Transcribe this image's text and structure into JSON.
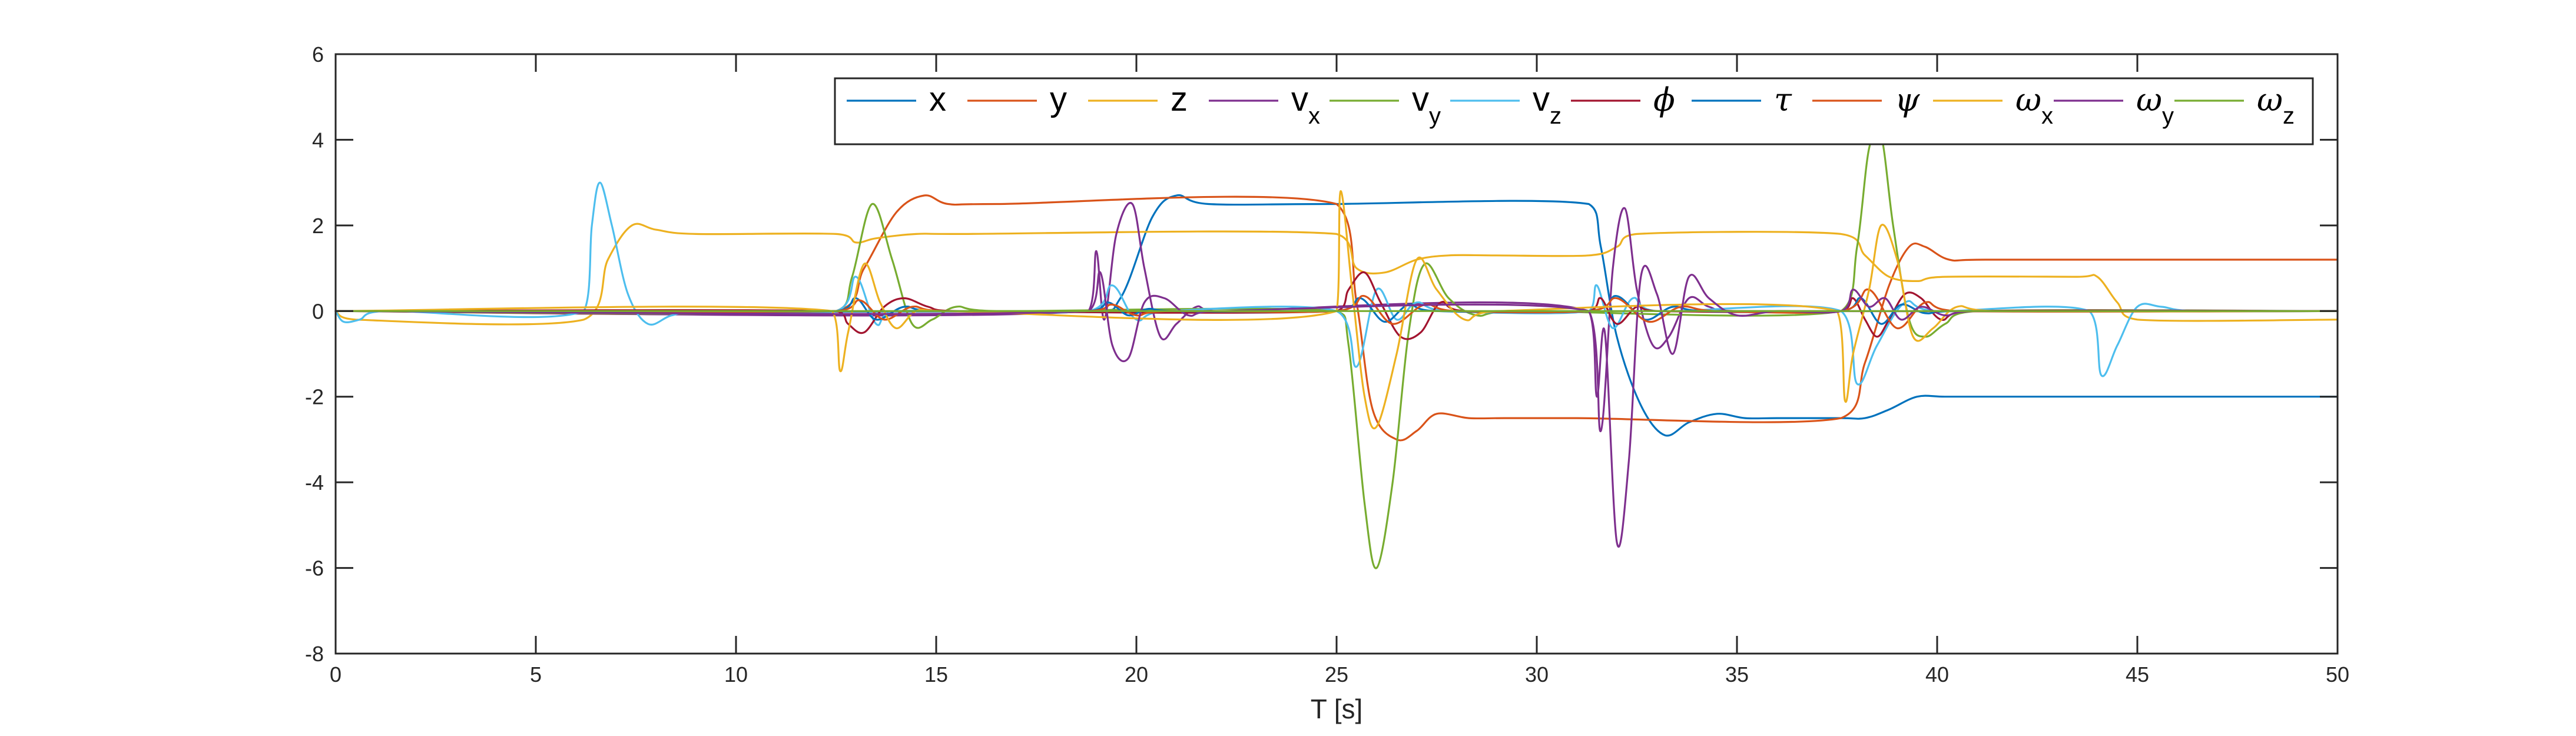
{
  "chart_data": {
    "type": "line",
    "title": "",
    "xlabel": "T [s]",
    "ylabel": "",
    "xlim": [
      0,
      50
    ],
    "ylim": [
      -8,
      6
    ],
    "xticks": [
      0,
      5,
      10,
      15,
      20,
      25,
      30,
      35,
      40,
      45,
      50
    ],
    "yticks": [
      -8,
      -6,
      -4,
      -2,
      0,
      2,
      4,
      6
    ],
    "xtick_labels": [
      "0",
      "5",
      "10",
      "15",
      "20",
      "25",
      "30",
      "35",
      "40",
      "45",
      "50"
    ],
    "ytick_labels": [
      "-8",
      "-6",
      "-4",
      "-2",
      "0",
      "2",
      "4",
      "6"
    ],
    "grid": false,
    "legend_position": "top-right",
    "series": [
      {
        "name": "x",
        "base": "x",
        "sub": "",
        "greek": false,
        "color": "#0072BD",
        "x": [
          0,
          18.8,
          19.6,
          20.4,
          21.0,
          21.8,
          24.8,
          31.3,
          31.6,
          32.0,
          32.6,
          33.2,
          33.8,
          34.5,
          35.2,
          36.0,
          37.6,
          38.2,
          38.8,
          39.5,
          40.2,
          41.5,
          50
        ],
        "y": [
          0,
          0,
          0.3,
          2.2,
          2.7,
          2.5,
          2.5,
          2.5,
          1.5,
          -0.6,
          -2.2,
          -2.9,
          -2.6,
          -2.4,
          -2.5,
          -2.5,
          -2.5,
          -2.5,
          -2.3,
          -2.0,
          -2.0,
          -2.0,
          -2.0
        ]
      },
      {
        "name": "y",
        "base": "y",
        "sub": "",
        "greek": false,
        "color": "#D95319",
        "x": [
          0,
          12.5,
          13.2,
          14.0,
          14.7,
          15.3,
          16.5,
          25.0,
          25.5,
          25.9,
          26.5,
          27.0,
          27.5,
          28.3,
          29.2,
          31.0,
          37.6,
          38.2,
          38.8,
          39.3,
          39.7,
          40.3,
          41.2,
          50
        ],
        "y": [
          0,
          0,
          1.0,
          2.3,
          2.7,
          2.5,
          2.5,
          2.5,
          0.2,
          -2.3,
          -3.0,
          -2.8,
          -2.4,
          -2.5,
          -2.5,
          -2.5,
          -2.5,
          -1.2,
          0.6,
          1.5,
          1.5,
          1.2,
          1.2,
          1.2
        ]
      },
      {
        "name": "z",
        "base": "z",
        "sub": "",
        "greek": false,
        "color": "#EDB120",
        "x": [
          0,
          0.5,
          6.2,
          6.8,
          7.4,
          8.0,
          9.0,
          12.5,
          13.0,
          13.5,
          14.5,
          15.5,
          25.0,
          25.5,
          26.2,
          27.0,
          27.8,
          29.0,
          31.3,
          32.0,
          32.5,
          37.6,
          38.2,
          38.8,
          39.5,
          40.2,
          43.5,
          44.0,
          44.5,
          45.0,
          50
        ],
        "y": [
          0,
          -0.2,
          -0.2,
          1.2,
          2.0,
          1.9,
          1.8,
          1.8,
          1.6,
          1.7,
          1.8,
          1.8,
          1.8,
          1.0,
          0.9,
          1.2,
          1.3,
          1.3,
          1.3,
          1.5,
          1.8,
          1.8,
          1.3,
          0.8,
          0.7,
          0.8,
          0.8,
          0.8,
          0.2,
          -0.2,
          -0.2
        ]
      },
      {
        "name": "v_x",
        "base": "v",
        "sub": "x",
        "greek": false,
        "color": "#7E2F8E",
        "x": [
          0,
          18.8,
          19.0,
          19.2,
          19.5,
          19.9,
          20.2,
          20.6,
          21.0,
          21.5,
          22.0,
          31.3,
          31.6,
          31.9,
          32.2,
          32.5,
          32.9,
          33.3,
          33.8,
          34.3,
          35.0,
          50
        ],
        "y": [
          0,
          0,
          1.4,
          -0.2,
          1.8,
          2.5,
          1.0,
          -0.6,
          -0.3,
          0.1,
          0,
          0,
          -2.8,
          1.0,
          2.4,
          0.5,
          -0.8,
          -0.6,
          0.3,
          0.1,
          0,
          0
        ]
      },
      {
        "name": "v_y",
        "base": "v",
        "sub": "y",
        "greek": false,
        "color": "#77AC30",
        "x": [
          0,
          12.5,
          12.9,
          13.4,
          13.9,
          14.4,
          14.9,
          15.5,
          16.5,
          25.0,
          25.3,
          25.7,
          26.0,
          26.4,
          26.8,
          27.2,
          27.8,
          28.5,
          29.5,
          37.6,
          38.0,
          38.3,
          38.6,
          38.9,
          39.3,
          39.7,
          40.2,
          41.0,
          50
        ],
        "y": [
          0,
          0,
          0.8,
          2.5,
          1.2,
          -0.3,
          -0.2,
          0.1,
          0,
          0,
          -0.8,
          -4.5,
          -6.0,
          -4.0,
          -0.5,
          1.1,
          0.3,
          -0.1,
          0,
          0,
          1.5,
          3.8,
          4.1,
          2.0,
          -0.2,
          -0.6,
          -0.3,
          0,
          0
        ]
      },
      {
        "name": "v_z",
        "base": "v",
        "sub": "z",
        "greek": false,
        "color": "#4DBEEE",
        "x": [
          0,
          0.2,
          0.6,
          1.2,
          6.2,
          6.4,
          6.6,
          6.9,
          7.3,
          7.8,
          8.4,
          9.2,
          12.5,
          13.0,
          13.5,
          14.0,
          18.8,
          19.4,
          20.0,
          20.8,
          25.0,
          25.5,
          26.0,
          26.5,
          27.0,
          27.8,
          31.3,
          31.5,
          31.9,
          32.4,
          33.0,
          37.6,
          38.0,
          38.5,
          39.2,
          40.0,
          43.8,
          44.1,
          44.5,
          45.0,
          45.6,
          46.5,
          50
        ],
        "y": [
          0,
          -0.25,
          -0.2,
          0,
          0,
          2.0,
          3.0,
          2.0,
          0.4,
          -0.3,
          -0.1,
          0,
          0,
          0.8,
          -0.3,
          0,
          0,
          0.6,
          -0.2,
          0,
          0,
          -1.3,
          0.5,
          -0.2,
          0.2,
          0,
          0,
          0.6,
          -0.4,
          0.3,
          0,
          0,
          -1.7,
          -0.8,
          0.2,
          0,
          0,
          -1.5,
          -0.8,
          0.1,
          0.1,
          0,
          0
        ]
      },
      {
        "name": "phi",
        "base": "ϕ",
        "sub": "",
        "greek": true,
        "color": "#A2142F",
        "x": [
          0,
          12.5,
          12.8,
          13.2,
          13.7,
          14.2,
          14.8,
          15.5,
          25.0,
          25.3,
          25.7,
          26.1,
          26.6,
          27.1,
          27.6,
          28.2,
          31.3,
          31.6,
          32.0,
          32.5,
          33.0,
          37.6,
          37.9,
          38.2,
          38.5,
          38.8,
          39.2,
          39.6,
          40.1,
          40.8,
          50
        ],
        "y": [
          0,
          0,
          -0.3,
          -0.5,
          0.1,
          0.3,
          0.1,
          0,
          0,
          0.5,
          0.9,
          0.2,
          -0.6,
          -0.5,
          0.2,
          0,
          0,
          0.3,
          -0.3,
          0.1,
          0,
          0,
          0.3,
          -0.2,
          -0.6,
          -0.2,
          0.4,
          0.3,
          -0.2,
          0,
          0
        ]
      },
      {
        "name": "tau",
        "base": "τ",
        "sub": "",
        "greek": true,
        "color": "#0072BD",
        "x": [
          0,
          12.5,
          13.0,
          13.5,
          14.2,
          15.0,
          18.8,
          19.3,
          19.8,
          20.3,
          21.0,
          25.0,
          25.6,
          26.2,
          26.8,
          27.5,
          31.3,
          32.0,
          32.7,
          33.4,
          34.2,
          37.6,
          38.1,
          38.6,
          39.1,
          39.7,
          40.5,
          50
        ],
        "y": [
          0,
          0,
          0.3,
          -0.2,
          0.1,
          0,
          0,
          0.2,
          -0.1,
          0.05,
          0,
          0,
          0.3,
          -0.25,
          0.15,
          0,
          0,
          0.35,
          -0.2,
          0.1,
          0,
          0,
          0.3,
          -0.3,
          0.15,
          -0.05,
          0,
          0
        ]
      },
      {
        "name": "psi",
        "base": "ψ",
        "sub": "",
        "greek": true,
        "color": "#D95319",
        "x": [
          0,
          12.5,
          13.1,
          13.7,
          14.4,
          15.2,
          18.8,
          19.4,
          20.0,
          20.8,
          25.0,
          25.7,
          26.4,
          27.2,
          28.0,
          31.3,
          32.0,
          32.8,
          33.6,
          34.5,
          37.6,
          38.3,
          39.0,
          39.7,
          40.5,
          50
        ],
        "y": [
          0,
          0,
          0.25,
          -0.2,
          0.1,
          0,
          0,
          0.15,
          -0.1,
          0,
          0,
          0.35,
          -0.3,
          0.15,
          0,
          0,
          0.3,
          -0.25,
          0.1,
          0,
          0,
          0.5,
          -0.4,
          0.2,
          0,
          0
        ]
      },
      {
        "name": "omega_x",
        "base": "ω",
        "sub": "x",
        "greek": true,
        "color": "#EDB120",
        "x": [
          0,
          12.4,
          12.6,
          12.8,
          13.2,
          13.6,
          14.0,
          14.5,
          15.2,
          25.0,
          25.1,
          25.4,
          25.7,
          26.0,
          26.5,
          27.0,
          27.5,
          28.2,
          29.0,
          37.5,
          37.7,
          37.9,
          38.3,
          38.6,
          39.0,
          39.4,
          39.9,
          40.5,
          41.5,
          50
        ],
        "y": [
          0,
          0,
          -1.4,
          -0.5,
          1.1,
          0.2,
          -0.4,
          0,
          0,
          0,
          2.8,
          0.4,
          -2.0,
          -2.7,
          -1.0,
          1.2,
          0.5,
          -0.2,
          0,
          0,
          -2.1,
          -1.0,
          0.5,
          2.0,
          1.2,
          -0.6,
          -0.4,
          0.1,
          0,
          0
        ]
      },
      {
        "name": "omega_y",
        "base": "ω",
        "sub": "y",
        "greek": true,
        "color": "#7E2F8E",
        "x": [
          0,
          18.8,
          19.1,
          19.4,
          19.8,
          20.2,
          20.7,
          21.3,
          22.0,
          31.3,
          31.5,
          31.7,
          32.0,
          32.3,
          32.6,
          33.0,
          33.4,
          33.8,
          34.3,
          35.0,
          36.0,
          37.6,
          37.9,
          38.3,
          38.7,
          39.1,
          39.6,
          40.2,
          41.0,
          50
        ],
        "y": [
          0,
          0,
          0.9,
          -0.8,
          -1.1,
          0.2,
          0.3,
          -0.1,
          0,
          0,
          -2.0,
          -0.5,
          -5.4,
          -3.5,
          0.8,
          0.4,
          -1.0,
          0.8,
          0.3,
          -0.1,
          0,
          0,
          0.5,
          0.1,
          0.3,
          -0.2,
          0.1,
          -0.1,
          0,
          0
        ]
      },
      {
        "name": "omega_z",
        "base": "ω",
        "sub": "z",
        "greek": true,
        "color": "#77AC30",
        "x": [
          0,
          50
        ],
        "y": [
          0,
          0
        ]
      }
    ]
  }
}
